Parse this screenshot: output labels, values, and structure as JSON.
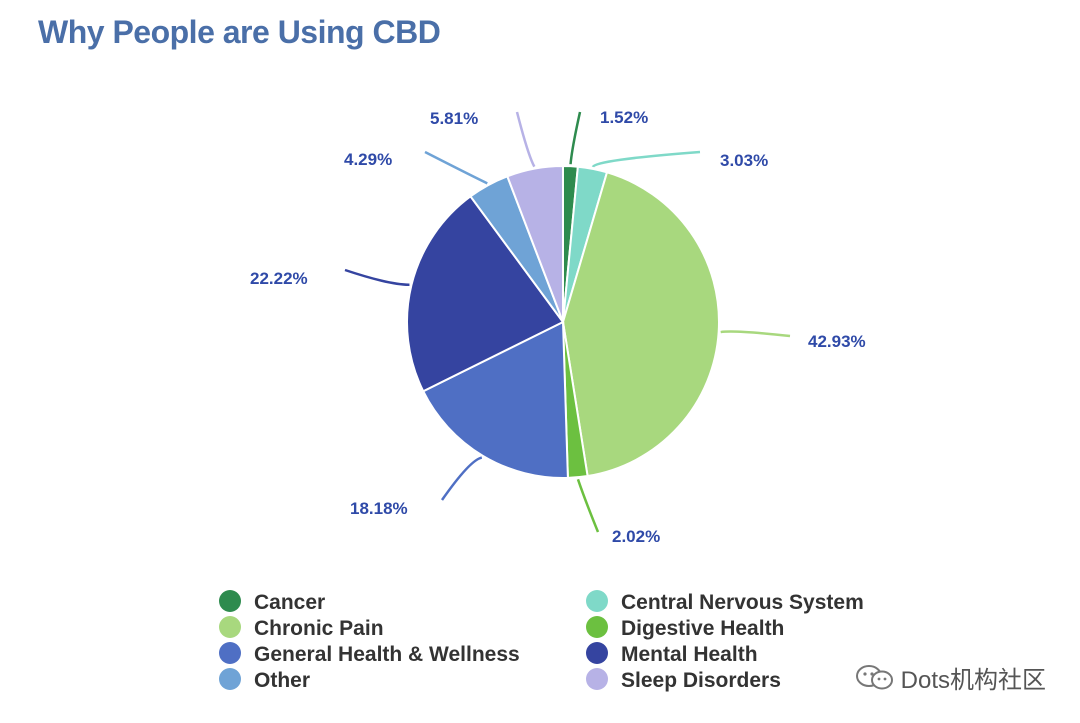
{
  "title": "Why People are Using CBD",
  "watermark": "Dots机构社区",
  "chart_data": {
    "type": "pie",
    "title": "Why People are Using CBD",
    "legend_position": "bottom",
    "slices": [
      {
        "name": "Cancer",
        "value": 1.52,
        "label": "1.52%",
        "color": "#2e8b4e"
      },
      {
        "name": "Central Nervous System",
        "value": 3.03,
        "label": "3.03%",
        "color": "#7fd9c8"
      },
      {
        "name": "Chronic Pain",
        "value": 42.93,
        "label": "42.93%",
        "color": "#a8d87e"
      },
      {
        "name": "Digestive Health",
        "value": 2.02,
        "label": "2.02%",
        "color": "#6cc040"
      },
      {
        "name": "General Health & Wellness",
        "value": 18.18,
        "label": "18.18%",
        "color": "#4f6fc4"
      },
      {
        "name": "Mental Health",
        "value": 22.22,
        "label": "22.22%",
        "color": "#3544a0"
      },
      {
        "name": "Other",
        "value": 4.29,
        "label": "4.29%",
        "color": "#6fa3d6"
      },
      {
        "name": "Sleep Disorders",
        "value": 5.81,
        "label": "5.81%",
        "color": "#b7b2e6"
      }
    ],
    "legend": [
      {
        "name": "Cancer",
        "color": "#2e8b4e"
      },
      {
        "name": "Central Nervous System",
        "color": "#7fd9c8"
      },
      {
        "name": "Chronic Pain",
        "color": "#a8d87e"
      },
      {
        "name": "Digestive Health",
        "color": "#6cc040"
      },
      {
        "name": "General Health & Wellness",
        "color": "#4f6fc4"
      },
      {
        "name": "Mental Health",
        "color": "#3544a0"
      },
      {
        "name": "Other",
        "color": "#6fa3d6"
      },
      {
        "name": "Sleep Disorders",
        "color": "#b7b2e6"
      }
    ]
  }
}
